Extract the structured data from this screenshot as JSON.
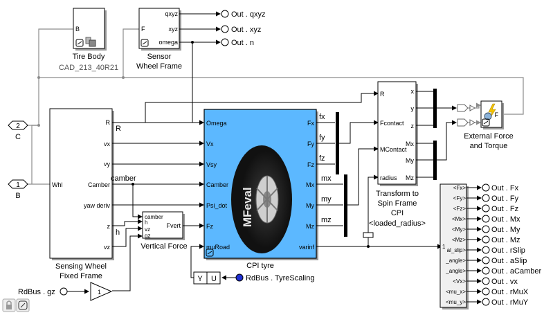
{
  "colors": {
    "cpi_fill": "#5cb8ff",
    "wire_gray": "#8c8c8c",
    "shadow": "#9a9a9a"
  },
  "inports": [
    {
      "num": "2",
      "name": "C"
    },
    {
      "num": "1",
      "name": "B"
    }
  ],
  "tire_body": {
    "name": "Tire Body",
    "subtitle": "CAD_213_40R21",
    "port_in": "B"
  },
  "sensor": {
    "name_line1": "Sensor",
    "name_line2": "Wheel Frame",
    "port_in": "F",
    "ports_out": [
      "qxyz",
      "xyz",
      "omega"
    ]
  },
  "top_outs": [
    "Out . qxyz",
    "Out . xyz",
    "Out . n"
  ],
  "sensing": {
    "name_line1": "Sensing Wheel",
    "name_line2": "Fixed Frame",
    "port_in": "Whl",
    "ports_out": [
      "R",
      "vx",
      "vy",
      "Camber",
      "yaw deriv",
      "z",
      "vz"
    ]
  },
  "signal_labels": {
    "r": "R",
    "camber": "camber",
    "h": "h"
  },
  "cpi": {
    "name": "CPI tyre",
    "ports_in": [
      "Omega",
      "Vx",
      "Vsy",
      "Camber",
      "Psi_dot",
      "Fz",
      "muRoad"
    ],
    "ports_out": [
      "Fx",
      "Fy",
      "Fz",
      "Mx",
      "My",
      "Mz",
      "varinf"
    ],
    "tire_brand": "MFeval"
  },
  "force_labels": [
    "fx",
    "fy",
    "fz",
    "mx",
    "my",
    "mz"
  ],
  "vertical_force": {
    "name": "Vertical Force",
    "ports_in": [
      "camber",
      "h",
      "vz",
      "gz"
    ],
    "port_out": "Fvert"
  },
  "transform": {
    "name_line1": "Transform to",
    "name_line2": "Spin Frame",
    "name_line3": "CPI",
    "param": "<loaded_radius>",
    "ports_in": [
      "R",
      "Fcontact",
      "MContact",
      "radius"
    ],
    "ports_out": [
      "x",
      "y",
      "z",
      "Mx",
      "My",
      "Mz"
    ]
  },
  "external_force": {
    "name_line1": "External Force",
    "name_line2": "and Torque",
    "port": "F"
  },
  "selector": {
    "ports": [
      "<Fx>",
      "<Fy>",
      "<Fz>",
      "<Mx>",
      "<My>",
      "<Mz>",
      "al_slip>",
      "_angle>",
      "_angle>",
      "<Vx>",
      "<mu_x>",
      "<mu_y>"
    ]
  },
  "right_outs": [
    "Out . Fx",
    "Out . Fy",
    "Out . Fz",
    "Out . Mx",
    "Out . My",
    "Out . Mz",
    "Out . rSlip",
    "Out . aSlip",
    "Out . aCamber",
    "Out . vx",
    "Out . rMuX",
    "Out . rMuY"
  ],
  "yu_block": {
    "in": "Y",
    "out": "U"
  },
  "rdbus_tyre": "RdBus . TyreScaling",
  "rdbus_gz": "RdBus . gz",
  "gain": "1"
}
